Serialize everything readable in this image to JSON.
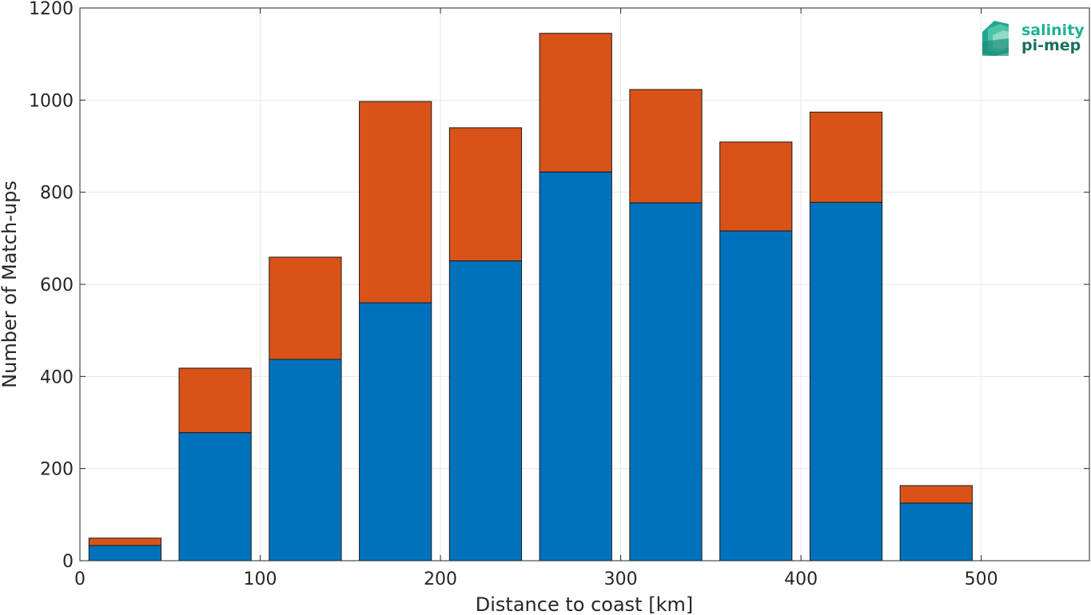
{
  "chart_data": {
    "type": "bar",
    "stacked": true,
    "title": "",
    "xlabel": "Distance to coast [km]",
    "ylabel": "Number of Match-ups",
    "xlim": [
      0,
      560
    ],
    "ylim": [
      0,
      1200
    ],
    "xticks": [
      "0",
      "100",
      "200",
      "300",
      "400",
      "500"
    ],
    "yticks": [
      "0",
      "200",
      "400",
      "600",
      "800",
      "1000",
      "1200"
    ],
    "grid": true,
    "bar_centers": [
      25,
      75,
      125,
      175,
      225,
      275,
      325,
      375,
      425,
      475
    ],
    "bar_width": 40,
    "series": [
      {
        "color": "#0072BD",
        "values": [
          33,
          278,
          437,
          560,
          651,
          844,
          777,
          716,
          778,
          125
        ]
      },
      {
        "color": "#D95319",
        "values": [
          16,
          140,
          222,
          437,
          289,
          301,
          246,
          193,
          196,
          38
        ]
      }
    ]
  },
  "logo": {
    "line1": "salinity",
    "line2": "pi-mep"
  }
}
